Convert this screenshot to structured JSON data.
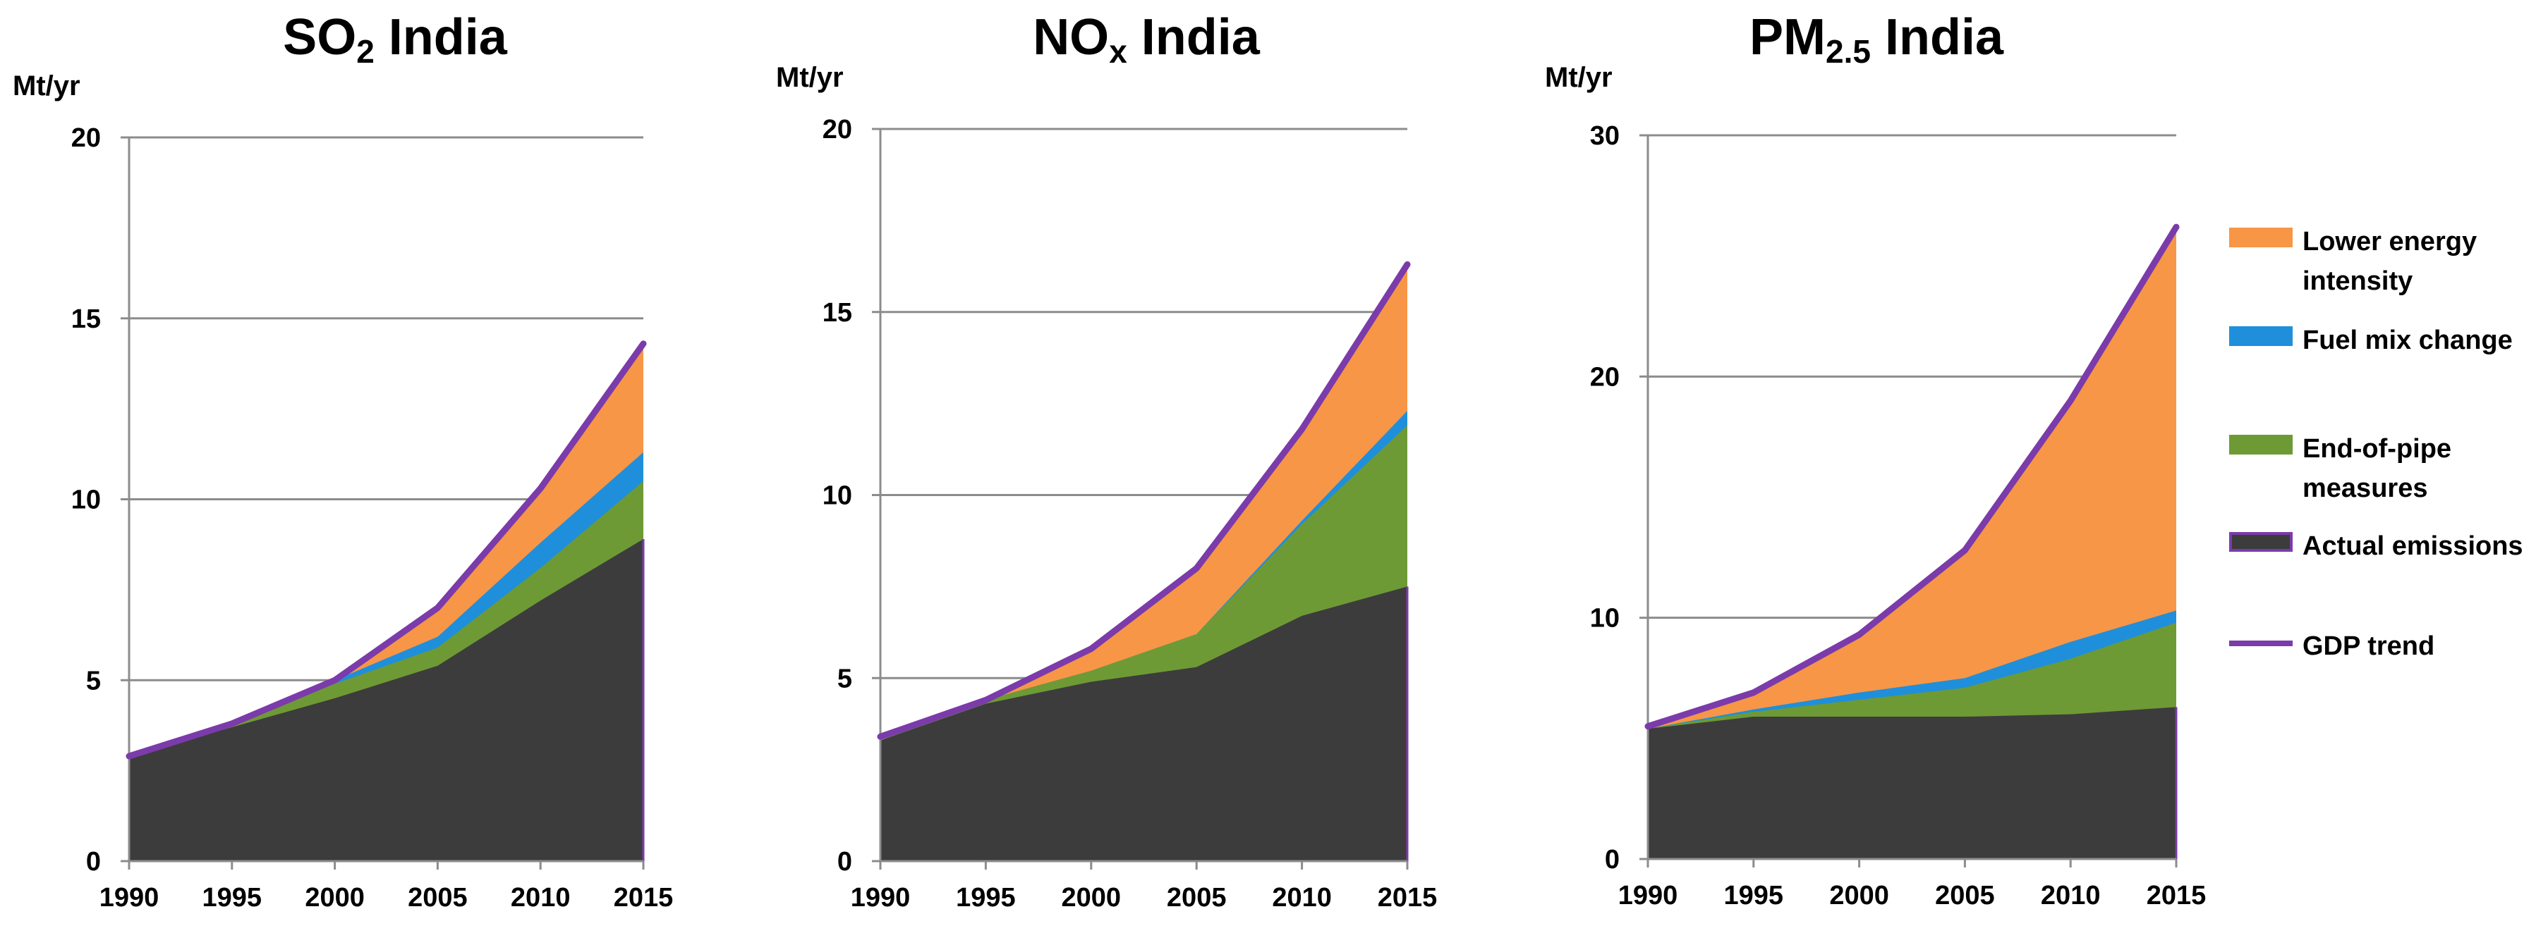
{
  "colors": {
    "lower_energy_intensity": "#F79646",
    "fuel_mix_change": "#1F8FDB",
    "end_of_pipe": "#6E9A35",
    "actual_emissions": "#3C3C3C",
    "gdp_trend": "#7B3BAA",
    "gridline": "#8C8C8C"
  },
  "legend": {
    "items": [
      {
        "label": "Lower energy intensity",
        "kind": "swatch",
        "color_key": "lower_energy_intensity"
      },
      {
        "label": "Fuel mix change",
        "kind": "swatch",
        "color_key": "fuel_mix_change"
      },
      {
        "label": "End-of-pipe measures",
        "kind": "swatch",
        "color_key": "end_of_pipe"
      },
      {
        "label": "Actual emissions",
        "kind": "swatch",
        "color_key": "actual_emissions"
      },
      {
        "label": "GDP trend",
        "kind": "line",
        "color_key": "gdp_trend"
      }
    ]
  },
  "chart_data": [
    {
      "type": "area",
      "title_main": "SO",
      "title_sub": "2",
      "title_rest": " India",
      "unit": "Mt/yr",
      "x": [
        1990,
        1995,
        2000,
        2005,
        2010,
        2015
      ],
      "xticks": [
        "1990",
        "1995",
        "2000",
        "2005",
        "2010",
        "2015"
      ],
      "ylim": [
        0,
        20
      ],
      "yticks": [
        "0",
        "5",
        "10",
        "15",
        "20"
      ],
      "grid": true,
      "series": [
        {
          "name": "Actual emissions",
          "values": [
            2.9,
            3.7,
            4.5,
            5.4,
            7.2,
            8.9
          ]
        },
        {
          "name": "End-of-pipe measures",
          "values": [
            2.9,
            3.8,
            4.9,
            5.9,
            8.1,
            10.5
          ]
        },
        {
          "name": "Fuel mix change",
          "values": [
            2.9,
            3.8,
            5.0,
            6.2,
            8.8,
            11.3
          ]
        },
        {
          "name": "Lower energy intensity",
          "values": [
            2.9,
            3.8,
            5.0,
            7.0,
            10.3,
            14.3
          ]
        }
      ],
      "gdp_trend": [
        2.9,
        3.8,
        5.0,
        7.0,
        10.3,
        14.3
      ]
    },
    {
      "type": "area",
      "title_main": "NO",
      "title_sub": "x",
      "title_rest": " India",
      "unit": "Mt/yr",
      "x": [
        1990,
        1995,
        2000,
        2005,
        2010,
        2015
      ],
      "xticks": [
        "1990",
        "1995",
        "2000",
        "2005",
        "2010",
        "2015"
      ],
      "ylim": [
        0,
        20
      ],
      "yticks": [
        "0",
        "5",
        "10",
        "15",
        "20"
      ],
      "grid": true,
      "series": [
        {
          "name": "Actual emissions",
          "values": [
            3.3,
            4.3,
            4.9,
            5.3,
            6.7,
            7.5
          ]
        },
        {
          "name": "End-of-pipe measures",
          "values": [
            3.3,
            4.4,
            5.2,
            6.2,
            9.2,
            11.9
          ]
        },
        {
          "name": "Fuel mix change",
          "values": [
            3.3,
            4.4,
            5.2,
            6.2,
            9.3,
            12.3
          ]
        },
        {
          "name": "Lower energy intensity",
          "values": [
            3.3,
            4.4,
            5.8,
            8.0,
            11.8,
            16.3
          ]
        }
      ],
      "gdp_trend": [
        3.4,
        4.4,
        5.8,
        8.0,
        11.8,
        16.3
      ]
    },
    {
      "type": "area",
      "title_main": "PM",
      "title_sub": "2.5",
      "title_rest": " India",
      "unit": "Mt/yr",
      "x": [
        1990,
        1995,
        2000,
        2005,
        2010,
        2015
      ],
      "xticks": [
        "1990",
        "1995",
        "2000",
        "2005",
        "2010",
        "2015"
      ],
      "ylim": [
        0,
        30
      ],
      "yticks": [
        "0",
        "10",
        "20",
        "30"
      ],
      "grid": true,
      "series": [
        {
          "name": "Actual emissions",
          "values": [
            5.4,
            5.9,
            5.9,
            5.9,
            6.0,
            6.3
          ]
        },
        {
          "name": "End-of-pipe measures",
          "values": [
            5.4,
            6.1,
            6.6,
            7.1,
            8.3,
            9.8
          ]
        },
        {
          "name": "Fuel mix change",
          "values": [
            5.4,
            6.2,
            6.9,
            7.5,
            9.0,
            10.3
          ]
        },
        {
          "name": "Lower energy intensity",
          "values": [
            5.4,
            6.9,
            9.3,
            12.8,
            19.0,
            26.2
          ]
        }
      ],
      "gdp_trend": [
        5.5,
        6.9,
        9.3,
        12.8,
        19.0,
        26.2
      ]
    }
  ]
}
